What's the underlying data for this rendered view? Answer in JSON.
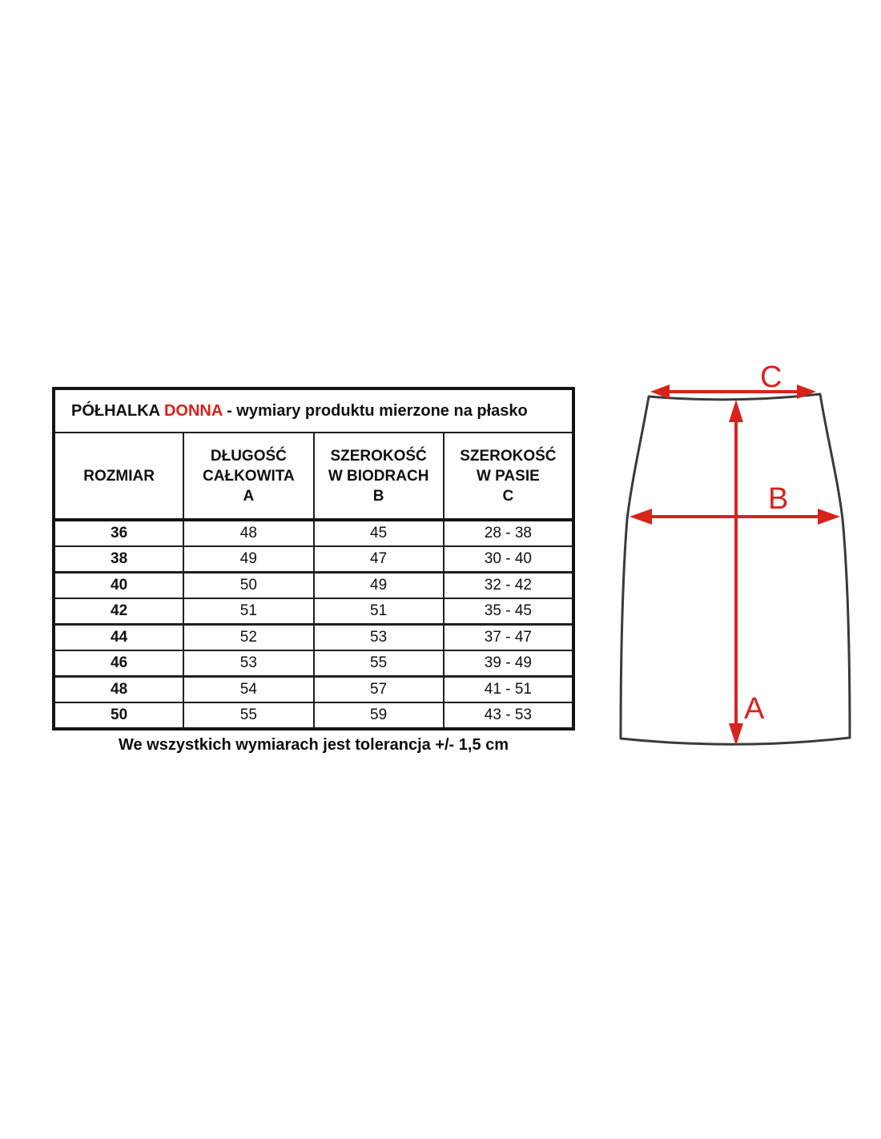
{
  "table": {
    "title": {
      "product_type": "PÓŁHALKA",
      "product_name": "DONNA",
      "suffix": "- wymiary produktu mierzone na płasko"
    },
    "columns": [
      {
        "lines": [
          "ROZMIAR"
        ]
      },
      {
        "lines": [
          "DŁUGOŚĆ",
          "CAŁKOWITA",
          "A"
        ]
      },
      {
        "lines": [
          "SZEROKOŚĆ",
          "W BIODRACH",
          "B"
        ]
      },
      {
        "lines": [
          "SZEROKOŚĆ",
          "W PASIE",
          "C"
        ]
      }
    ],
    "rows": [
      [
        "36",
        "48",
        "45",
        "28 - 38"
      ],
      [
        "38",
        "49",
        "47",
        "30 - 40"
      ],
      [
        "40",
        "50",
        "49",
        "32 - 42"
      ],
      [
        "42",
        "51",
        "51",
        "35 - 45"
      ],
      [
        "44",
        "52",
        "53",
        "37 - 47"
      ],
      [
        "46",
        "53",
        "55",
        "39 - 49"
      ],
      [
        "48",
        "54",
        "57",
        "41 - 51"
      ],
      [
        "50",
        "55",
        "59",
        "43 - 53"
      ]
    ],
    "footnote": "We wszystkich wymiarach jest tolerancja +/- 1,5 cm"
  },
  "diagram": {
    "labels": {
      "a": "A",
      "b": "B",
      "c": "C"
    },
    "arrow_color": "#d8231d",
    "outline_color": "#3a3a3a"
  },
  "colors": {
    "accent_red": "#d8221b",
    "border_black": "#141414"
  }
}
